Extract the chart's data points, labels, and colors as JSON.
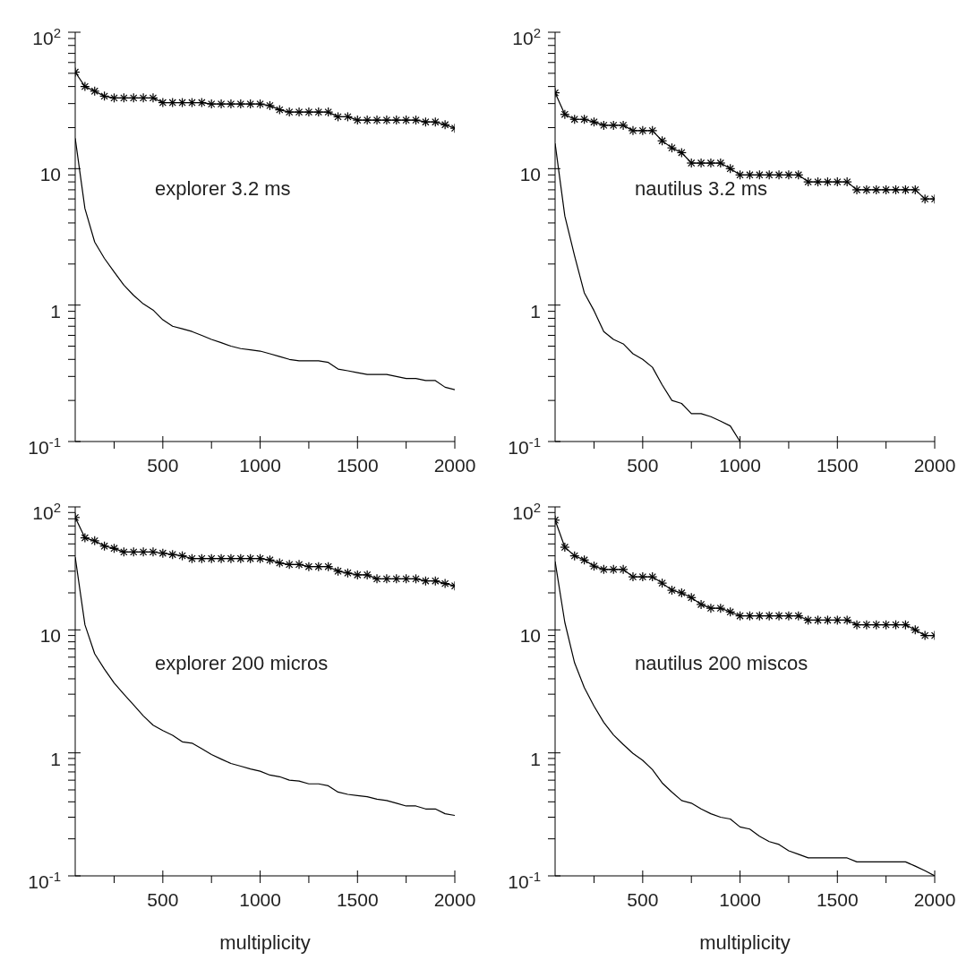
{
  "chart_data": [
    {
      "type": "line",
      "annotations": [
        "explorer 3.2 ms"
      ],
      "log": "y",
      "xlim": [
        50,
        2000
      ],
      "xticks": [
        {
          "value": 250,
          "label": null
        },
        500,
        {
          "value": 750,
          "label": null
        },
        1000,
        {
          "value": 1250,
          "label": null
        },
        1500,
        {
          "value": 1750,
          "label": null
        },
        2000
      ],
      "ylim": [
        0.1,
        100
      ],
      "yticks": [
        {
          "value": 0.1,
          "label": "10$^{-1}$"
        },
        {
          "value": 0.2,
          "label": null
        },
        {
          "value": 0.3,
          "label": null
        },
        {
          "value": 0.4,
          "label": null
        },
        {
          "value": 0.5,
          "label": null
        },
        {
          "value": 0.6,
          "label": null
        },
        {
          "value": 0.7,
          "label": null
        },
        {
          "value": 0.8,
          "label": null
        },
        {
          "value": 0.9,
          "label": null
        },
        {
          "value": 1,
          "label": "1"
        },
        {
          "value": 2,
          "label": null
        },
        {
          "value": 3,
          "label": null
        },
        {
          "value": 4,
          "label": null
        },
        {
          "value": 5,
          "label": null
        },
        {
          "value": 6,
          "label": null
        },
        {
          "value": 7,
          "label": null
        },
        {
          "value": 8,
          "label": null
        },
        {
          "value": 9,
          "label": null
        },
        {
          "value": 10,
          "label": "10"
        },
        {
          "value": 20,
          "label": null
        },
        {
          "value": 30,
          "label": null
        },
        {
          "value": 40,
          "label": null
        },
        {
          "value": 50,
          "label": null
        },
        {
          "value": 60,
          "label": null
        },
        {
          "value": 70,
          "label": null
        },
        {
          "value": 80,
          "label": null
        },
        {
          "value": 90,
          "label": null
        },
        {
          "value": 100,
          "label": "10$^{2}$"
        }
      ],
      "x": [
        50,
        100,
        150,
        200,
        250,
        300,
        350,
        400,
        450,
        500,
        550,
        600,
        650,
        700,
        750,
        800,
        850,
        900,
        950,
        1000,
        1050,
        1100,
        1150,
        1200,
        1250,
        1300,
        1350,
        1400,
        1450,
        1500,
        1550,
        1600,
        1650,
        1700,
        1750,
        1800,
        1850,
        1900,
        1950,
        2000
      ],
      "series": [
        {
          "color": "#000000",
          "marker": "cross",
          "values": [
            51,
            40,
            37,
            34,
            33,
            33,
            33,
            33,
            33,
            30.5,
            30.5,
            30.5,
            30.5,
            30.5,
            29.8,
            29.8,
            29.8,
            29.8,
            29.8,
            29.8,
            29,
            27,
            26,
            26,
            26,
            26,
            26,
            24,
            24,
            22.7,
            22.7,
            22.7,
            22.7,
            22.7,
            22.7,
            22.7,
            22,
            22,
            21,
            19.8
          ]
        },
        {
          "color": "#000000",
          "marker": "none",
          "values": [
            16.7,
            5.1,
            2.9,
            2.2,
            1.75,
            1.4,
            1.18,
            1.02,
            0.92,
            0.78,
            0.7,
            0.67,
            0.64,
            0.6,
            0.56,
            0.53,
            0.5,
            0.48,
            0.47,
            0.46,
            0.44,
            0.42,
            0.4,
            0.39,
            0.39,
            0.39,
            0.38,
            0.34,
            0.33,
            0.32,
            0.31,
            0.31,
            0.31,
            0.3,
            0.29,
            0.29,
            0.28,
            0.28,
            0.25,
            0.24
          ]
        }
      ]
    },
    {
      "type": "line",
      "annotations": [
        "nautilus 3.2 ms"
      ],
      "log": "y",
      "xlim": [
        50,
        2000
      ],
      "xticks": [
        {
          "value": 250,
          "label": null
        },
        500,
        {
          "value": 750,
          "label": null
        },
        1000,
        {
          "value": 1250,
          "label": null
        },
        1500,
        {
          "value": 1750,
          "label": null
        },
        2000
      ],
      "ylim": [
        0.1,
        100
      ],
      "yticks": [
        {
          "value": 0.1,
          "label": "10$^{-1}$"
        },
        {
          "value": 0.2,
          "label": null
        },
        {
          "value": 0.3,
          "label": null
        },
        {
          "value": 0.4,
          "label": null
        },
        {
          "value": 0.5,
          "label": null
        },
        {
          "value": 0.6,
          "label": null
        },
        {
          "value": 0.7,
          "label": null
        },
        {
          "value": 0.8,
          "label": null
        },
        {
          "value": 0.9,
          "label": null
        },
        {
          "value": 1,
          "label": "1"
        },
        {
          "value": 2,
          "label": null
        },
        {
          "value": 3,
          "label": null
        },
        {
          "value": 4,
          "label": null
        },
        {
          "value": 5,
          "label": null
        },
        {
          "value": 6,
          "label": null
        },
        {
          "value": 7,
          "label": null
        },
        {
          "value": 8,
          "label": null
        },
        {
          "value": 9,
          "label": null
        },
        {
          "value": 10,
          "label": "10"
        },
        {
          "value": 20,
          "label": null
        },
        {
          "value": 30,
          "label": null
        },
        {
          "value": 40,
          "label": null
        },
        {
          "value": 50,
          "label": null
        },
        {
          "value": 60,
          "label": null
        },
        {
          "value": 70,
          "label": null
        },
        {
          "value": 80,
          "label": null
        },
        {
          "value": 90,
          "label": null
        },
        {
          "value": 100,
          "label": "10$^{2}$"
        }
      ],
      "x": [
        50,
        100,
        150,
        200,
        250,
        300,
        350,
        400,
        450,
        500,
        550,
        600,
        650,
        700,
        750,
        800,
        850,
        900,
        950,
        1000,
        1050,
        1100,
        1150,
        1200,
        1250,
        1300,
        1350,
        1400,
        1450,
        1500,
        1550,
        1600,
        1650,
        1700,
        1750,
        1800,
        1850,
        1900,
        1950,
        2000
      ],
      "series": [
        {
          "color": "#000000",
          "marker": "cross",
          "values": [
            36,
            25,
            23,
            23,
            22,
            20.8,
            20.8,
            20.8,
            19,
            19,
            19,
            16,
            14.2,
            13.1,
            11,
            11,
            11,
            11,
            10,
            9,
            9,
            9,
            9,
            9,
            9,
            9,
            8,
            8,
            8,
            8,
            8,
            7,
            7,
            7,
            7,
            7,
            7,
            7,
            6,
            6
          ]
        },
        {
          "color": "#000000",
          "marker": "none",
          "values": [
            15.3,
            4.5,
            2.3,
            1.23,
            0.91,
            0.64,
            0.56,
            0.52,
            0.44,
            0.4,
            0.35,
            0.26,
            0.2,
            0.19,
            0.16,
            0.16,
            0.152,
            0.141,
            0.13,
            0.1,
            null,
            null,
            null,
            null,
            null,
            null,
            null,
            null,
            null,
            null,
            null,
            null,
            null,
            null,
            null,
            null,
            null,
            null,
            null,
            null
          ]
        }
      ]
    },
    {
      "type": "line",
      "annotations": [
        "explorer 200 micros"
      ],
      "xlabel": "multiplicity",
      "log": "y",
      "xlim": [
        50,
        2000
      ],
      "xticks": [
        {
          "value": 250,
          "label": null
        },
        500,
        {
          "value": 750,
          "label": null
        },
        1000,
        {
          "value": 1250,
          "label": null
        },
        1500,
        {
          "value": 1750,
          "label": null
        },
        2000
      ],
      "ylim": [
        0.1,
        100
      ],
      "yticks": [
        {
          "value": 0.1,
          "label": "10$^{-1}$"
        },
        {
          "value": 0.2,
          "label": null
        },
        {
          "value": 0.3,
          "label": null
        },
        {
          "value": 0.4,
          "label": null
        },
        {
          "value": 0.5,
          "label": null
        },
        {
          "value": 0.6,
          "label": null
        },
        {
          "value": 0.7,
          "label": null
        },
        {
          "value": 0.8,
          "label": null
        },
        {
          "value": 0.9,
          "label": null
        },
        {
          "value": 1,
          "label": "1"
        },
        {
          "value": 2,
          "label": null
        },
        {
          "value": 3,
          "label": null
        },
        {
          "value": 4,
          "label": null
        },
        {
          "value": 5,
          "label": null
        },
        {
          "value": 6,
          "label": null
        },
        {
          "value": 7,
          "label": null
        },
        {
          "value": 8,
          "label": null
        },
        {
          "value": 9,
          "label": null
        },
        {
          "value": 10,
          "label": "10"
        },
        {
          "value": 20,
          "label": null
        },
        {
          "value": 30,
          "label": null
        },
        {
          "value": 40,
          "label": null
        },
        {
          "value": 50,
          "label": null
        },
        {
          "value": 60,
          "label": null
        },
        {
          "value": 70,
          "label": null
        },
        {
          "value": 80,
          "label": null
        },
        {
          "value": 90,
          "label": null
        },
        {
          "value": 100,
          "label": "10$^{2}$"
        }
      ],
      "x": [
        50,
        100,
        150,
        200,
        250,
        300,
        350,
        400,
        450,
        500,
        550,
        600,
        650,
        700,
        750,
        800,
        850,
        900,
        950,
        1000,
        1050,
        1100,
        1150,
        1200,
        1250,
        1300,
        1350,
        1400,
        1450,
        1500,
        1550,
        1600,
        1650,
        1700,
        1750,
        1800,
        1850,
        1900,
        1950,
        2000
      ],
      "series": [
        {
          "color": "#000000",
          "marker": "cross",
          "values": [
            82,
            56,
            53,
            48,
            46,
            43,
            43,
            43,
            43,
            42,
            41,
            40,
            38,
            38,
            38,
            38,
            38,
            38,
            38,
            38,
            37,
            35,
            34,
            34,
            32.7,
            32.7,
            32.7,
            30,
            29,
            28,
            28,
            26,
            26,
            26,
            26,
            26,
            25,
            25,
            23.8,
            22.8
          ]
        },
        {
          "color": "#000000",
          "marker": "none",
          "values": [
            39,
            11,
            6.4,
            4.8,
            3.7,
            3,
            2.45,
            2,
            1.68,
            1.52,
            1.39,
            1.23,
            1.2,
            1.08,
            0.97,
            0.89,
            0.82,
            0.78,
            0.74,
            0.71,
            0.66,
            0.64,
            0.6,
            0.59,
            0.56,
            0.56,
            0.54,
            0.48,
            0.46,
            0.45,
            0.44,
            0.42,
            0.41,
            0.39,
            0.37,
            0.37,
            0.35,
            0.35,
            0.32,
            0.31
          ]
        }
      ]
    },
    {
      "type": "line",
      "annotations": [
        "nautilus 200 miscos"
      ],
      "xlabel": "multiplicity",
      "log": "y",
      "xlim": [
        50,
        2000
      ],
      "xticks": [
        {
          "value": 250,
          "label": null
        },
        500,
        {
          "value": 750,
          "label": null
        },
        1000,
        {
          "value": 1250,
          "label": null
        },
        1500,
        {
          "value": 1750,
          "label": null
        },
        2000
      ],
      "ylim": [
        0.1,
        100
      ],
      "yticks": [
        {
          "value": 0.1,
          "label": "10$^{-1}$"
        },
        {
          "value": 0.2,
          "label": null
        },
        {
          "value": 0.3,
          "label": null
        },
        {
          "value": 0.4,
          "label": null
        },
        {
          "value": 0.5,
          "label": null
        },
        {
          "value": 0.6,
          "label": null
        },
        {
          "value": 0.7,
          "label": null
        },
        {
          "value": 0.8,
          "label": null
        },
        {
          "value": 0.9,
          "label": null
        },
        {
          "value": 1,
          "label": "1"
        },
        {
          "value": 2,
          "label": null
        },
        {
          "value": 3,
          "label": null
        },
        {
          "value": 4,
          "label": null
        },
        {
          "value": 5,
          "label": null
        },
        {
          "value": 6,
          "label": null
        },
        {
          "value": 7,
          "label": null
        },
        {
          "value": 8,
          "label": null
        },
        {
          "value": 9,
          "label": null
        },
        {
          "value": 10,
          "label": "10"
        },
        {
          "value": 20,
          "label": null
        },
        {
          "value": 30,
          "label": null
        },
        {
          "value": 40,
          "label": null
        },
        {
          "value": 50,
          "label": null
        },
        {
          "value": 60,
          "label": null
        },
        {
          "value": 70,
          "label": null
        },
        {
          "value": 80,
          "label": null
        },
        {
          "value": 90,
          "label": null
        },
        {
          "value": 100,
          "label": "10$^{2}$"
        }
      ],
      "x": [
        50,
        100,
        150,
        200,
        250,
        300,
        350,
        400,
        450,
        500,
        550,
        600,
        650,
        700,
        750,
        800,
        850,
        900,
        950,
        1000,
        1050,
        1100,
        1150,
        1200,
        1250,
        1300,
        1350,
        1400,
        1450,
        1500,
        1550,
        1600,
        1650,
        1700,
        1750,
        1800,
        1850,
        1900,
        1950,
        2000
      ],
      "series": [
        {
          "color": "#000000",
          "marker": "cross",
          "values": [
            78,
            47,
            40,
            37,
            33,
            31,
            31,
            31,
            27,
            27,
            27,
            24,
            21,
            20,
            18.3,
            16.1,
            15,
            15,
            14,
            13,
            13,
            13,
            13,
            13,
            13,
            13,
            12,
            12,
            12,
            12,
            12,
            11,
            11,
            11,
            11,
            11,
            11,
            10,
            9,
            9
          ]
        },
        {
          "color": "#000000",
          "marker": "none",
          "values": [
            36,
            11.5,
            5.4,
            3.4,
            2.4,
            1.77,
            1.4,
            1.17,
            0.99,
            0.87,
            0.73,
            0.57,
            0.48,
            0.41,
            0.39,
            0.35,
            0.32,
            0.3,
            0.29,
            0.25,
            0.24,
            0.21,
            0.19,
            0.18,
            0.16,
            0.15,
            0.14,
            0.14,
            0.14,
            0.14,
            0.14,
            0.13,
            0.13,
            0.13,
            0.13,
            0.13,
            0.13,
            0.12,
            0.11,
            0.1
          ]
        }
      ]
    }
  ]
}
